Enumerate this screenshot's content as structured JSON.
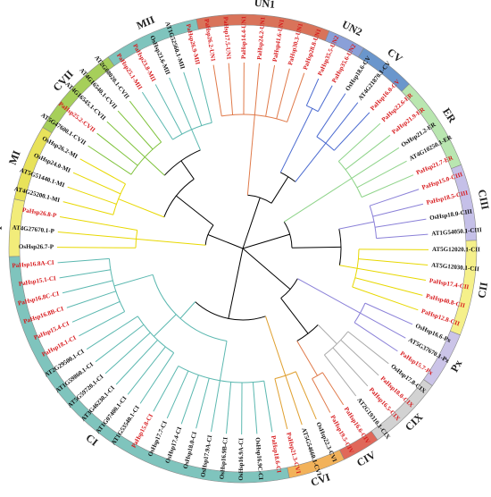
{
  "clades": [
    {
      "label": "P",
      "color": "#f2ec7a",
      "edge": "#e8d800"
    },
    {
      "label": "MI",
      "color": "#e8e25a",
      "edge": "#e8d800"
    },
    {
      "label": "CVII",
      "color": "#a6cf5a",
      "edge": "#7ec23a"
    },
    {
      "label": "MII",
      "color": "#7fc4bd",
      "edge": "#5bb8b0"
    },
    {
      "label": "UN1",
      "color": "#d9735a",
      "edge": "#e07a4a"
    },
    {
      "label": "UN2",
      "color": "#8aa0d8",
      "edge": "#4a6ad0"
    },
    {
      "label": "CV",
      "color": "#6a96cc",
      "edge": "#4a6ad0"
    },
    {
      "label": "ER",
      "color": "#b9e6b0",
      "edge": "#8fd48a"
    },
    {
      "label": "CIII",
      "color": "#c5c0e8",
      "edge": "#8a80d8"
    },
    {
      "label": "CII",
      "color": "#f5f08a",
      "edge": "#e8d800"
    },
    {
      "label": "Px",
      "color": "#cbc4e8",
      "edge": "#8a80d8"
    },
    {
      "label": "CIX",
      "color": "#d2d2d2",
      "edge": "#aaaaaa"
    },
    {
      "label": "CIV",
      "color": "#e0685a",
      "edge": "#e07a4a"
    },
    {
      "label": "CVI",
      "color": "#f2b25a",
      "edge": "#e0a030"
    },
    {
      "label": "CI",
      "color": "#7fc4bd",
      "edge": "#5bb8b0"
    }
  ],
  "leaves": [
    {
      "name": "OsHsp26.7-P",
      "clade": "P",
      "red": false
    },
    {
      "name": "AT4G27670.1-P",
      "clade": "P",
      "red": false
    },
    {
      "name": "PaHsp26.8-P",
      "clade": "P",
      "red": true
    },
    {
      "name": "AT4G25200.1-MI",
      "clade": "MI",
      "red": false
    },
    {
      "name": "AT5G51440.1-MI",
      "clade": "MI",
      "red": false
    },
    {
      "name": "OsHsp24.0-MI",
      "clade": "MI",
      "red": false
    },
    {
      "name": "OsHsp26.2-MI",
      "clade": "MI",
      "red": false
    },
    {
      "name": "AT5G47600.1-CVII",
      "clade": "CVII",
      "red": false
    },
    {
      "name": "PaHsp25.2-CVII",
      "clade": "CVII",
      "red": true
    },
    {
      "name": "AT4G16545.1-CVII",
      "clade": "CVII",
      "red": false
    },
    {
      "name": "AT4G16540.1-CVII",
      "clade": "CVII",
      "red": false
    },
    {
      "name": "AT2G08020.1-CVII",
      "clade": "CVII",
      "red": false
    },
    {
      "name": "PaHsp25.1-MII",
      "clade": "MII",
      "red": true
    },
    {
      "name": "PaHsp23.8-MII",
      "clade": "MII",
      "red": true
    },
    {
      "name": "OsHsp23.6-MII",
      "clade": "MII",
      "red": false
    },
    {
      "name": "AT1G52560.1-MII",
      "clade": "MII",
      "red": false
    },
    {
      "name": "PaHsp26.9-MII",
      "clade": "MII",
      "red": true
    },
    {
      "name": "PaHsp26.2-UN1",
      "clade": "UN1",
      "red": true
    },
    {
      "name": "PaHsp17.5-UN1",
      "clade": "UN1",
      "red": true
    },
    {
      "name": "PaHsp14.4-UN1",
      "clade": "UN1",
      "red": true
    },
    {
      "name": "PaHsp24.2-UN1",
      "clade": "UN1",
      "red": true
    },
    {
      "name": "PaHsp41.6-UN1",
      "clade": "UN1",
      "red": true
    },
    {
      "name": "PaHsp30.3-UN1",
      "clade": "UN1",
      "red": true
    },
    {
      "name": "PaHsp28.8-UN1",
      "clade": "UN1",
      "red": true
    },
    {
      "name": "PaHsp35.5-UN2",
      "clade": "UN2",
      "red": true
    },
    {
      "name": "PaHsp35.6-UN2",
      "clade": "UN2",
      "red": true
    },
    {
      "name": "OsHsp18.6-CV",
      "clade": "CV",
      "red": false
    },
    {
      "name": "AT4G21870.1-CV",
      "clade": "CV",
      "red": false
    },
    {
      "name": "PaHsp16.0-CV",
      "clade": "CV",
      "red": true
    },
    {
      "name": "PaHsp22.6-ER",
      "clade": "ER",
      "red": true
    },
    {
      "name": "PaHsp21.9-ER",
      "clade": "ER",
      "red": true
    },
    {
      "name": "OsHsp21.2-ER",
      "clade": "ER",
      "red": false
    },
    {
      "name": "AT4G10250.1-ER",
      "clade": "ER",
      "red": false
    },
    {
      "name": "PaHsp21.7-ER",
      "clade": "ER",
      "red": true
    },
    {
      "name": "PaHsp15.0-CIII",
      "clade": "CIII",
      "red": true
    },
    {
      "name": "PaHsp18.5-CIII",
      "clade": "CIII",
      "red": true
    },
    {
      "name": "OsHsp18.0-CIII",
      "clade": "CIII",
      "red": false
    },
    {
      "name": "AT1G54050.1-CIII",
      "clade": "CIII",
      "red": false
    },
    {
      "name": "AT5G12020.1-CII",
      "clade": "CII",
      "red": false
    },
    {
      "name": "AT5G12030.1-CII",
      "clade": "CII",
      "red": false
    },
    {
      "name": "PaHsp17.4-CII",
      "clade": "CII",
      "red": true
    },
    {
      "name": "PaHsp40.8-CII",
      "clade": "CII",
      "red": true
    },
    {
      "name": "PaHsp12.8-CII",
      "clade": "CII",
      "red": true
    },
    {
      "name": "OsHsp16.6-Px",
      "clade": "Px",
      "red": false
    },
    {
      "name": "AT5G37670.1-Px",
      "clade": "Px",
      "red": false
    },
    {
      "name": "PaHsp15.7-Px",
      "clade": "Px",
      "red": true
    },
    {
      "name": "OsHsp17.8-CIX",
      "clade": "CIX",
      "red": false
    },
    {
      "name": "PaHsp18.0-CIX",
      "clade": "CIX",
      "red": true
    },
    {
      "name": "PaHsp16.5-CIX",
      "clade": "CIX",
      "red": true
    },
    {
      "name": "AT2G19310.1-CIX",
      "clade": "CIX",
      "red": false
    },
    {
      "name": "PaHsp16.6-CIV",
      "clade": "CIV",
      "red": true
    },
    {
      "name": "PaHsp19.5-CIV",
      "clade": "CIV",
      "red": true
    },
    {
      "name": "OsHsp22.3-CVI",
      "clade": "CVI",
      "red": false
    },
    {
      "name": "AT5G54660.1-CVI",
      "clade": "CVI",
      "red": false
    },
    {
      "name": "PaHsp21.3-CVI",
      "clade": "CVI",
      "red": true
    },
    {
      "name": "PaHsp18.6-CI",
      "clade": "CI",
      "red": true
    },
    {
      "name": "OsHsp16.9C-CI",
      "clade": "CI",
      "red": false
    },
    {
      "name": "OsHsp16.9A-CI",
      "clade": "CI",
      "red": false
    },
    {
      "name": "OsHsp16.9B-CI",
      "clade": "CI",
      "red": false
    },
    {
      "name": "OsHsp17.9A-CI",
      "clade": "CI",
      "red": false
    },
    {
      "name": "OsHsp18.0-CI",
      "clade": "CI",
      "red": false
    },
    {
      "name": "OsHsp17.4-CI",
      "clade": "CI",
      "red": false
    },
    {
      "name": "OsHsp17.7-CI",
      "clade": "CI",
      "red": false
    },
    {
      "name": "PaHsp15.8-CI",
      "clade": "CI",
      "red": true
    },
    {
      "name": "AT1G53540.1-CI",
      "clade": "CI",
      "red": false
    },
    {
      "name": "AT1G07400.1-CI",
      "clade": "CI",
      "red": false
    },
    {
      "name": "AT3G46230.1-CI",
      "clade": "CI",
      "red": false
    },
    {
      "name": "AT5G59720.1-CI",
      "clade": "CI",
      "red": false
    },
    {
      "name": "AT1G59860.1-CI",
      "clade": "CI",
      "red": false
    },
    {
      "name": "AT2G29500.1-CI",
      "clade": "CI",
      "red": false
    },
    {
      "name": "PaHsp18.1-CI",
      "clade": "CI",
      "red": true
    },
    {
      "name": "PaHsp15.4-CI",
      "clade": "CI",
      "red": true
    },
    {
      "name": "PaHsp16.8B-CI",
      "clade": "CI",
      "red": true
    },
    {
      "name": "PaHsp16.8C-CI",
      "clade": "CI",
      "red": true
    },
    {
      "name": "PaHsp15.1-CI",
      "clade": "CI",
      "red": true
    },
    {
      "name": "PaHsp16.8A-CI",
      "clade": "CI",
      "red": true
    }
  ],
  "colors": {
    "red_label": "#d7191c",
    "black_label": "#111111",
    "backbone": "#000000",
    "outer_ring_stroke": "#888888"
  }
}
